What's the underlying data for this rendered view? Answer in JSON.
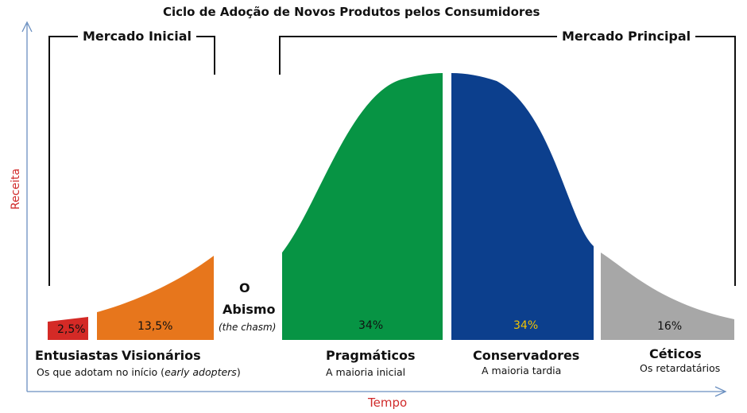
{
  "title": "Ciclo de Adoção de Novos Produtos pelos Consumidores",
  "markets": {
    "initial": "Mercado Inicial",
    "main": "Mercado Principal"
  },
  "chasm": {
    "line1": "O",
    "line2": "Abismo",
    "sub": "(the chasm)"
  },
  "segments": [
    {
      "name": "Entusiastas",
      "percent": "2,5%",
      "color": "#d42a26"
    },
    {
      "name": "Visionários",
      "percent": "13,5%",
      "color": "#e7761c"
    },
    {
      "name": "Pragmáticos",
      "percent": "34%",
      "subtitle": "A maioria inicial",
      "color": "#079444"
    },
    {
      "name": "Conservadores",
      "percent": "34%",
      "subtitle": "A maioria tardia",
      "color": "#0c3f8d",
      "percent_color": "#f2c400"
    },
    {
      "name": "Céticos",
      "percent": "16%",
      "subtitle": "Os retardatários",
      "color": "#a7a7a7"
    }
  ],
  "early_note": {
    "prefix": "Os que adotam no início (",
    "italic": "early adopters",
    "suffix": ")"
  },
  "axes": {
    "y_label": "Receita",
    "x_label": "Tempo",
    "label_color": "#d02a2a",
    "axis_color": "#6a8fc0"
  }
}
